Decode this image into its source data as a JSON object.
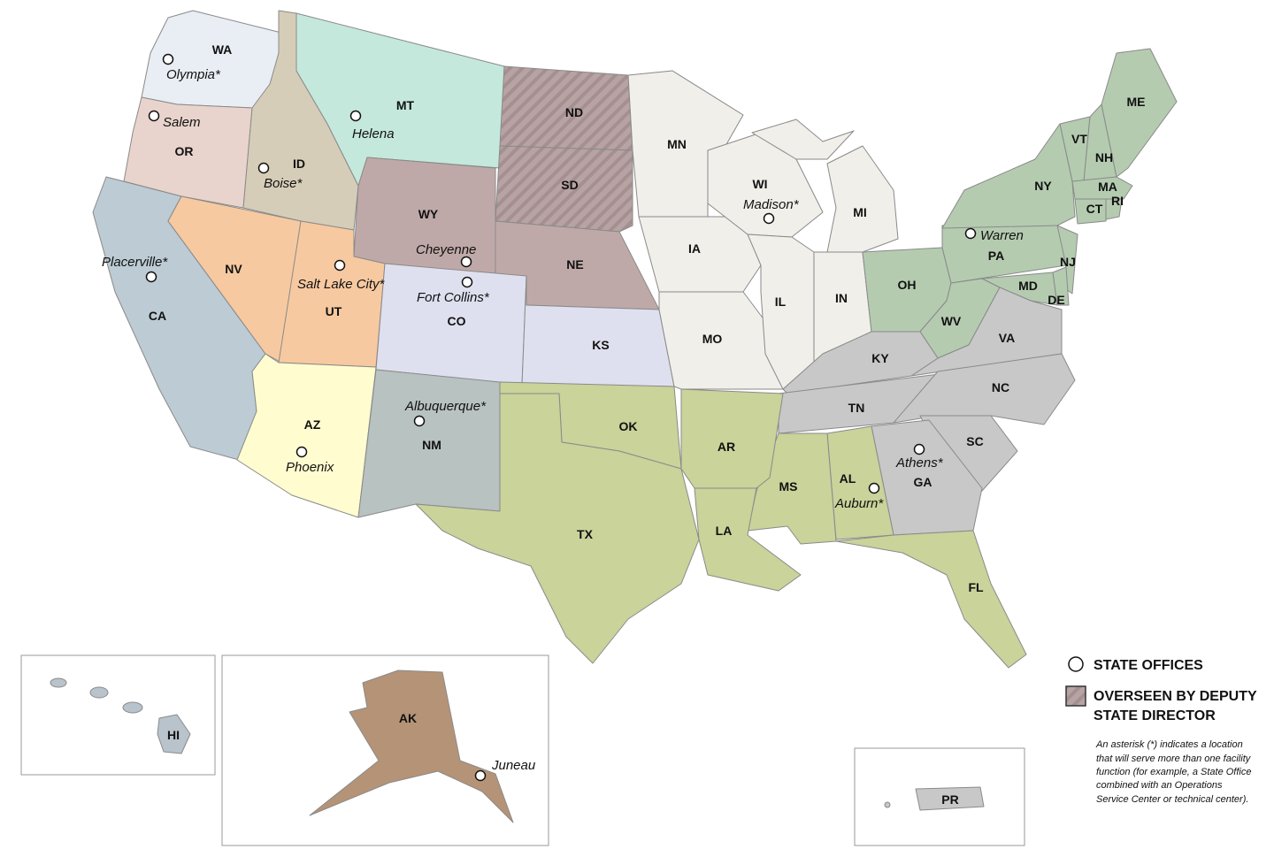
{
  "colors": {
    "WA": "#e9edf4",
    "OR": "#e8d4cc",
    "ID": "#d6cdb8",
    "MT": "#c4e8dc",
    "deputy": "#b7a3a3",
    "WY": "#bfa9a8",
    "NE": "#bfa9a8",
    "NV": "#f7c9a0",
    "UT": "#f7c9a0",
    "CA": "#bccbd4",
    "AZ": "#fffcd0",
    "NM": "#b8c2c0",
    "CO": "#dfe0ef",
    "KS": "#dfe0ef",
    "midwest": "#f1efea",
    "south": "#c9d39a",
    "southeast": "#c8c8c8",
    "northeast": "#b4cbb0",
    "AK": "#b59377",
    "HI": "#b8c3cc",
    "PR": "#c8c8c8"
  },
  "states": {
    "WA": "WA",
    "OR": "OR",
    "ID": "ID",
    "MT": "MT",
    "ND": "ND",
    "SD": "SD",
    "WY": "WY",
    "NE": "NE",
    "CA": "CA",
    "NV": "NV",
    "UT": "UT",
    "CO": "CO",
    "KS": "KS",
    "AZ": "AZ",
    "NM": "NM",
    "OK": "OK",
    "TX": "TX",
    "MN": "MN",
    "IA": "IA",
    "MO": "MO",
    "WI": "WI",
    "IL": "IL",
    "IN": "IN",
    "MI": "MI",
    "OH": "OH",
    "PA": "PA",
    "NY": "NY",
    "VT": "VT",
    "NH": "NH",
    "ME": "ME",
    "MA": "MA",
    "CT": "CT",
    "RI": "RI",
    "NJ": "NJ",
    "MD": "MD",
    "DE": "DE",
    "WV": "WV",
    "VA": "VA",
    "KY": "KY",
    "TN": "TN",
    "NC": "NC",
    "SC": "SC",
    "GA": "GA",
    "AL": "AL",
    "MS": "MS",
    "AR": "AR",
    "LA": "LA",
    "FL": "FL",
    "AK": "AK",
    "HI": "HI",
    "PR": "PR"
  },
  "offices": [
    "Olympia*",
    "Salem",
    "Boise*",
    "Helena",
    "Placerville*",
    "Salt Lake City*",
    "Cheyenne",
    "Fort Collins*",
    "Albuquerque*",
    "Phoenix",
    "Madison*",
    "Warren",
    "Athens*",
    "Auburn*",
    "Juneau"
  ],
  "legend": {
    "state_offices": "STATE OFFICES",
    "deputy_line1": "OVERSEEN BY DEPUTY",
    "deputy_line2": "STATE DIRECTOR",
    "note": [
      "An asterisk (*) indicates a location",
      "that will serve more than one facility",
      "function (for example, a State Office",
      "combined with an Operations",
      "Service Center or technical center)."
    ]
  }
}
